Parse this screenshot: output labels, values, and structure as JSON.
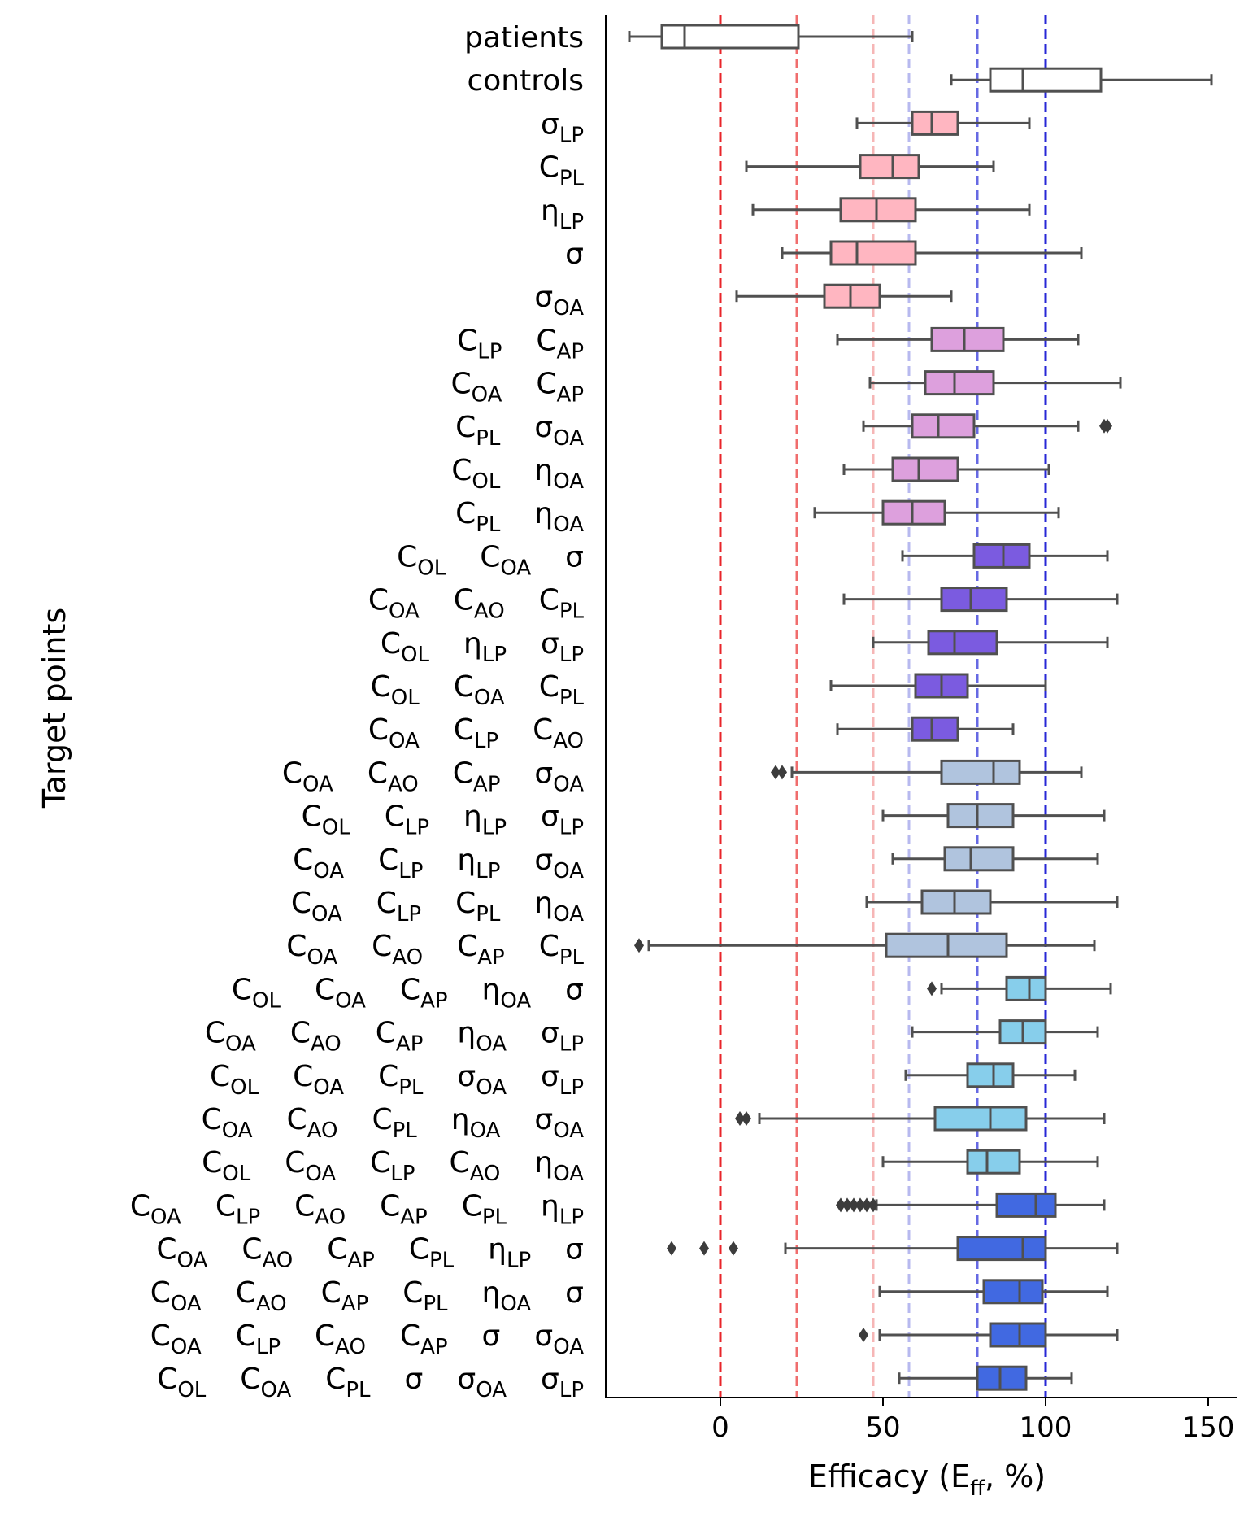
{
  "chart_data": {
    "type": "boxplot",
    "orientation": "horizontal",
    "xlabel": {
      "prefix": "Efficacy   (E",
      "sub": "ff",
      "suffix": ",  %)"
    },
    "ylabel": "Target points",
    "xlim": [
      -35,
      160
    ],
    "xticks": [
      0,
      50,
      100,
      150
    ],
    "grid": false,
    "reference_lines": [
      {
        "x": 0,
        "color": "#e8242a"
      },
      {
        "x": 23.5,
        "color": "#f06d6d"
      },
      {
        "x": 47,
        "color": "#f6b6b6"
      },
      {
        "x": 58,
        "color": "#b7b9ef"
      },
      {
        "x": 79,
        "color": "#6669e3"
      },
      {
        "x": 100,
        "color": "#2727d6"
      }
    ],
    "rows": [
      {
        "label": [
          [
            "patients",
            ""
          ]
        ],
        "fill": "#ffffff",
        "stats": [
          -28,
          -18,
          -11,
          24,
          59
        ],
        "outliers": []
      },
      {
        "label": [
          [
            "controls",
            ""
          ]
        ],
        "fill": "#ffffff",
        "stats": [
          71,
          83,
          93,
          117,
          151
        ],
        "outliers": []
      },
      {
        "label": [
          [
            "σ",
            "LP"
          ]
        ],
        "fill": "#ffb6c1",
        "stats": [
          42,
          59,
          65,
          73,
          95
        ],
        "outliers": []
      },
      {
        "label": [
          [
            "C",
            "PL"
          ]
        ],
        "fill": "#ffb6c1",
        "stats": [
          8,
          43,
          53,
          61,
          84
        ],
        "outliers": []
      },
      {
        "label": [
          [
            "η",
            "LP"
          ]
        ],
        "fill": "#ffb6c1",
        "stats": [
          10,
          37,
          48,
          60,
          95
        ],
        "outliers": []
      },
      {
        "label": [
          [
            "σ",
            ""
          ]
        ],
        "fill": "#ffb6c1",
        "stats": [
          19,
          34,
          42,
          60,
          111
        ],
        "outliers": []
      },
      {
        "label": [
          [
            "σ",
            "OA"
          ]
        ],
        "fill": "#ffb6c1",
        "stats": [
          5,
          32,
          40,
          49,
          71
        ],
        "outliers": []
      },
      {
        "label": [
          [
            "C",
            "LP"
          ],
          [
            "C",
            "AP"
          ]
        ],
        "fill": "#dda0dd",
        "stats": [
          36,
          65,
          75,
          87,
          110
        ],
        "outliers": []
      },
      {
        "label": [
          [
            "C",
            "OA"
          ],
          [
            "C",
            "AP"
          ]
        ],
        "fill": "#dda0dd",
        "stats": [
          46,
          63,
          72,
          84,
          123
        ],
        "outliers": []
      },
      {
        "label": [
          [
            "C",
            "PL"
          ],
          [
            "σ",
            "OA"
          ]
        ],
        "fill": "#dda0dd",
        "stats": [
          44,
          59,
          67,
          78,
          110
        ],
        "outliers": [
          118,
          119
        ]
      },
      {
        "label": [
          [
            "C",
            "OL"
          ],
          [
            "η",
            "OA"
          ]
        ],
        "fill": "#dda0dd",
        "stats": [
          38,
          53,
          61,
          73,
          101
        ],
        "outliers": []
      },
      {
        "label": [
          [
            "C",
            "PL"
          ],
          [
            "η",
            "OA"
          ]
        ],
        "fill": "#dda0dd",
        "stats": [
          29,
          50,
          59,
          69,
          104
        ],
        "outliers": []
      },
      {
        "label": [
          [
            "C",
            "OL"
          ],
          [
            "C",
            "OA"
          ],
          [
            "σ",
            ""
          ]
        ],
        "fill": "#7b5be0",
        "stats": [
          56,
          78,
          87,
          95,
          119
        ],
        "outliers": []
      },
      {
        "label": [
          [
            "C",
            "OA"
          ],
          [
            "C",
            "AO"
          ],
          [
            "C",
            "PL"
          ]
        ],
        "fill": "#7b5be0",
        "stats": [
          38,
          68,
          77,
          88,
          122
        ],
        "outliers": []
      },
      {
        "label": [
          [
            "C",
            "OL"
          ],
          [
            "η",
            "LP"
          ],
          [
            "σ",
            "LP"
          ]
        ],
        "fill": "#7b5be0",
        "stats": [
          47,
          64,
          72,
          85,
          119
        ],
        "outliers": []
      },
      {
        "label": [
          [
            "C",
            "OL"
          ],
          [
            "C",
            "OA"
          ],
          [
            "C",
            "PL"
          ]
        ],
        "fill": "#7b5be0",
        "stats": [
          34,
          60,
          68,
          76,
          100
        ],
        "outliers": []
      },
      {
        "label": [
          [
            "C",
            "OA"
          ],
          [
            "C",
            "LP"
          ],
          [
            "C",
            "AO"
          ]
        ],
        "fill": "#7b5be0",
        "stats": [
          36,
          59,
          65,
          73,
          90
        ],
        "outliers": []
      },
      {
        "label": [
          [
            "C",
            "OA"
          ],
          [
            "C",
            "AO"
          ],
          [
            "C",
            "AP"
          ],
          [
            "σ",
            "OA"
          ]
        ],
        "fill": "#b0c4de",
        "stats": [
          22,
          68,
          84,
          92,
          111
        ],
        "outliers": [
          17,
          19
        ]
      },
      {
        "label": [
          [
            "C",
            "OL"
          ],
          [
            "C",
            "LP"
          ],
          [
            "η",
            "LP"
          ],
          [
            "σ",
            "LP"
          ]
        ],
        "fill": "#b0c4de",
        "stats": [
          50,
          70,
          79,
          90,
          118
        ],
        "outliers": []
      },
      {
        "label": [
          [
            "C",
            "OA"
          ],
          [
            "C",
            "LP"
          ],
          [
            "η",
            "LP"
          ],
          [
            "σ",
            "OA"
          ]
        ],
        "fill": "#b0c4de",
        "stats": [
          53,
          69,
          77,
          90,
          116
        ],
        "outliers": []
      },
      {
        "label": [
          [
            "C",
            "OA"
          ],
          [
            "C",
            "LP"
          ],
          [
            "C",
            "PL"
          ],
          [
            "η",
            "OA"
          ]
        ],
        "fill": "#b0c4de",
        "stats": [
          45,
          62,
          72,
          83,
          122
        ],
        "outliers": []
      },
      {
        "label": [
          [
            "C",
            "OA"
          ],
          [
            "C",
            "AO"
          ],
          [
            "C",
            "AP"
          ],
          [
            "C",
            "PL"
          ]
        ],
        "fill": "#b0c4de",
        "stats": [
          -22,
          51,
          70,
          88,
          115
        ],
        "outliers": [
          -25
        ]
      },
      {
        "label": [
          [
            "C",
            "OL"
          ],
          [
            "C",
            "OA"
          ],
          [
            "C",
            "AP"
          ],
          [
            "η",
            "OA"
          ],
          [
            "σ",
            ""
          ]
        ],
        "fill": "#87ceeb",
        "stats": [
          68,
          88,
          95,
          100,
          120
        ],
        "outliers": [
          65
        ]
      },
      {
        "label": [
          [
            "C",
            "OA"
          ],
          [
            "C",
            "AO"
          ],
          [
            "C",
            "AP"
          ],
          [
            "η",
            "OA"
          ],
          [
            "σ",
            "LP"
          ]
        ],
        "fill": "#87ceeb",
        "stats": [
          59,
          86,
          93,
          100,
          116
        ],
        "outliers": []
      },
      {
        "label": [
          [
            "C",
            "OL"
          ],
          [
            "C",
            "OA"
          ],
          [
            "C",
            "PL"
          ],
          [
            "σ",
            "OA"
          ],
          [
            "σ",
            "LP"
          ]
        ],
        "fill": "#87ceeb",
        "stats": [
          57,
          76,
          84,
          90,
          109
        ],
        "outliers": []
      },
      {
        "label": [
          [
            "C",
            "OA"
          ],
          [
            "C",
            "AO"
          ],
          [
            "C",
            "PL"
          ],
          [
            "η",
            "OA"
          ],
          [
            "σ",
            "OA"
          ]
        ],
        "fill": "#87ceeb",
        "stats": [
          12,
          66,
          83,
          94,
          118
        ],
        "outliers": [
          6,
          8
        ]
      },
      {
        "label": [
          [
            "C",
            "OL"
          ],
          [
            "C",
            "OA"
          ],
          [
            "C",
            "LP"
          ],
          [
            "C",
            "AO"
          ],
          [
            "η",
            "OA"
          ]
        ],
        "fill": "#87ceeb",
        "stats": [
          50,
          76,
          82,
          92,
          116
        ],
        "outliers": []
      },
      {
        "label": [
          [
            "C",
            "OA"
          ],
          [
            "C",
            "LP"
          ],
          [
            "C",
            "AO"
          ],
          [
            "C",
            "AP"
          ],
          [
            "C",
            "PL"
          ],
          [
            "η",
            "LP"
          ]
        ],
        "fill": "#4169e1",
        "stats": [
          48,
          85,
          97,
          103,
          118
        ],
        "outliers": [
          37,
          39,
          41,
          43,
          45,
          47
        ]
      },
      {
        "label": [
          [
            "C",
            "OA"
          ],
          [
            "C",
            "AO"
          ],
          [
            "C",
            "AP"
          ],
          [
            "C",
            "PL"
          ],
          [
            "η",
            "LP"
          ],
          [
            "σ",
            ""
          ]
        ],
        "fill": "#4169e1",
        "stats": [
          20,
          73,
          93,
          100,
          122
        ],
        "outliers": [
          -15,
          -5,
          4
        ]
      },
      {
        "label": [
          [
            "C",
            "OA"
          ],
          [
            "C",
            "AO"
          ],
          [
            "C",
            "AP"
          ],
          [
            "C",
            "PL"
          ],
          [
            "η",
            "OA"
          ],
          [
            "σ",
            ""
          ]
        ],
        "fill": "#4169e1",
        "stats": [
          49,
          81,
          92,
          99,
          119
        ],
        "outliers": []
      },
      {
        "label": [
          [
            "C",
            "OA"
          ],
          [
            "C",
            "LP"
          ],
          [
            "C",
            "AO"
          ],
          [
            "C",
            "AP"
          ],
          [
            "σ",
            ""
          ],
          [
            "σ",
            "OA"
          ]
        ],
        "fill": "#4169e1",
        "stats": [
          49,
          83,
          92,
          100,
          122
        ],
        "outliers": [
          44
        ]
      },
      {
        "label": [
          [
            "C",
            "OL"
          ],
          [
            "C",
            "OA"
          ],
          [
            "C",
            "PL"
          ],
          [
            "σ",
            ""
          ],
          [
            "σ",
            "OA"
          ],
          [
            "σ",
            "LP"
          ]
        ],
        "fill": "#4169e1",
        "stats": [
          55,
          79,
          86,
          94,
          108
        ],
        "outliers": []
      }
    ]
  }
}
